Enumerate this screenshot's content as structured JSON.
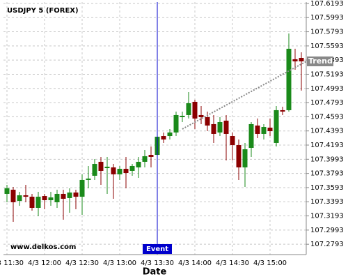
{
  "chart_data": {
    "type": "candlestick",
    "title": "USDJPY 5 (FOREX)",
    "x_label": "Date",
    "watermark": "www.delkos.com",
    "categories": [
      "4/3 11:30",
      null,
      null,
      null,
      null,
      null,
      "4/3 12:00",
      null,
      null,
      null,
      null,
      null,
      "4/3 12:30",
      null,
      null,
      null,
      null,
      null,
      "4/3 13:00",
      null,
      null,
      null,
      null,
      null,
      "4/3 13:30",
      null,
      null,
      null,
      null,
      null,
      "4/3 14:00",
      null,
      null,
      null,
      null,
      null,
      "4/3 14:30",
      null,
      null,
      null,
      null,
      null,
      "4/3 15:00",
      null,
      null,
      null,
      null,
      null
    ],
    "open": [
      107.3504,
      107.3563,
      107.3405,
      107.3484,
      107.3464,
      107.3307,
      107.3474,
      107.3415,
      107.3386,
      107.3504,
      107.3445,
      107.3523,
      107.3464,
      107.3701,
      107.376,
      107.3957,
      107.3868,
      107.3878,
      107.378,
      107.3858,
      107.3829,
      107.3878,
      107.3957,
      107.4055,
      107.4055,
      107.4321,
      107.4321,
      107.4371,
      107.4587,
      107.4617,
      107.4804,
      107.4617,
      107.4587,
      107.4489,
      107.4371,
      107.4538,
      107.4321,
      107.4193,
      107.3878,
      107.4154,
      107.4469,
      107.4351,
      107.4439,
      107.4223,
      107.4686,
      107.4686,
      107.5405,
      107.5424
    ],
    "high": [
      107.3632,
      107.3602,
      107.3533,
      107.3632,
      107.3504,
      107.3533,
      107.3504,
      107.3533,
      107.3563,
      107.3563,
      107.3583,
      107.3563,
      107.378,
      107.3898,
      107.3996,
      107.4026,
      107.4026,
      107.3927,
      107.3898,
      107.4026,
      107.3927,
      107.4026,
      107.4124,
      107.4174,
      107.4371,
      107.4371,
      107.442,
      107.4666,
      107.4666,
      107.4942,
      107.4833,
      107.4745,
      107.4666,
      107.4617,
      107.4587,
      107.4617,
      107.4371,
      107.4272,
      107.4223,
      107.4518,
      107.4568,
      107.4489,
      107.4568,
      107.4745,
      107.4735,
      107.5769,
      107.5553,
      107.5503
    ],
    "low": [
      107.3386,
      107.311,
      107.3336,
      107.3386,
      107.3267,
      107.3189,
      107.3287,
      107.3336,
      107.3307,
      107.3139,
      107.3238,
      107.3287,
      107.3208,
      107.3583,
      107.3701,
      107.3632,
      107.3504,
      107.3435,
      107.3701,
      107.3583,
      107.376,
      107.373,
      107.3878,
      107.3878,
      107.3927,
      107.4223,
      107.4272,
      107.4321,
      107.4518,
      107.4568,
      107.442,
      107.4489,
      107.439,
      107.4223,
      107.4321,
      107.3977,
      107.3977,
      107.3701,
      107.3602,
      107.4026,
      107.4292,
      107.4272,
      107.4321,
      107.4174,
      107.4617,
      107.4666,
      107.5257,
      107.4962
    ],
    "close": [
      107.3583,
      107.3386,
      107.3484,
      107.3464,
      107.3307,
      107.3464,
      107.3415,
      107.3454,
      107.3504,
      107.3435,
      107.3523,
      107.3464,
      107.3701,
      107.372,
      107.3927,
      107.3829,
      107.3888,
      107.378,
      107.3858,
      107.3799,
      107.3898,
      107.3957,
      107.4036,
      107.4026,
      107.4311,
      107.4272,
      107.4371,
      107.4617,
      107.4607,
      107.4784,
      107.4568,
      107.4587,
      107.4469,
      107.4351,
      107.4518,
      107.4351,
      107.4193,
      107.3878,
      107.4134,
      107.4489,
      107.4351,
      107.4449,
      107.439,
      107.4686,
      107.4666,
      107.5553,
      107.5375,
      107.5375
    ],
    "up_color": "#1a8a1a",
    "down_color": "#8b0000",
    "ylim": [
      107.2647,
      107.6212
    ],
    "yticks": [
      107.6193,
      107.5993,
      107.5793,
      107.5593,
      107.5393,
      107.5193,
      107.4993,
      107.4793,
      107.4593,
      107.4393,
      107.4193,
      107.3993,
      107.3793,
      107.3593,
      107.3393,
      107.3193,
      107.2993,
      107.2793
    ],
    "grid": true,
    "trend": {
      "label": "Trend",
      "x": [
        28,
        47.8
      ],
      "y": [
        107.442,
        107.5375
      ],
      "color": "#888888"
    },
    "event": {
      "label": "Event",
      "x": 24,
      "color": "#0000cc"
    }
  }
}
